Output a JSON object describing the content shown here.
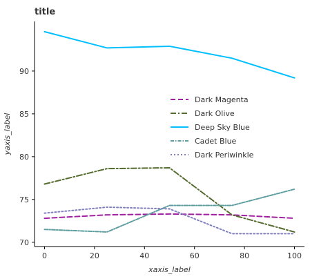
{
  "chart_data": {
    "type": "line",
    "title": "title",
    "xlabel": "xaxis_label",
    "ylabel": "yaxis_label",
    "x": [
      0,
      25,
      50,
      75,
      100
    ],
    "x_ticks": [
      "0",
      "20",
      "40",
      "60",
      "80",
      "100"
    ],
    "y_ticks": [
      "70",
      "75",
      "80",
      "85",
      "90"
    ],
    "xlim": [
      -4,
      104
    ],
    "ylim": [
      69.5,
      95.8
    ],
    "grid": false,
    "legend_position": "center-right",
    "series": [
      {
        "name": "Dark Magenta",
        "color": "#a020a0",
        "dash": "dashed",
        "values": [
          72.8,
          73.2,
          73.3,
          73.2,
          72.8
        ]
      },
      {
        "name": "Dark Olive",
        "color": "#556b2f",
        "dash": "dashdot",
        "values": [
          76.8,
          78.6,
          78.7,
          73.2,
          71.2
        ]
      },
      {
        "name": "Deep Sky Blue",
        "color": "#00bfff",
        "dash": "solid",
        "values": [
          94.6,
          92.7,
          92.9,
          91.5,
          89.2
        ]
      },
      {
        "name": "Cadet Blue",
        "color": "#5f9ea0",
        "dash": "dashdot-dense",
        "values": [
          71.5,
          71.2,
          74.3,
          74.3,
          76.2
        ]
      },
      {
        "name": "Dark Periwinkle",
        "color": "#7f7fbf",
        "dash": "dotted",
        "values": [
          73.4,
          74.1,
          73.9,
          71.0,
          71.0
        ]
      }
    ]
  }
}
